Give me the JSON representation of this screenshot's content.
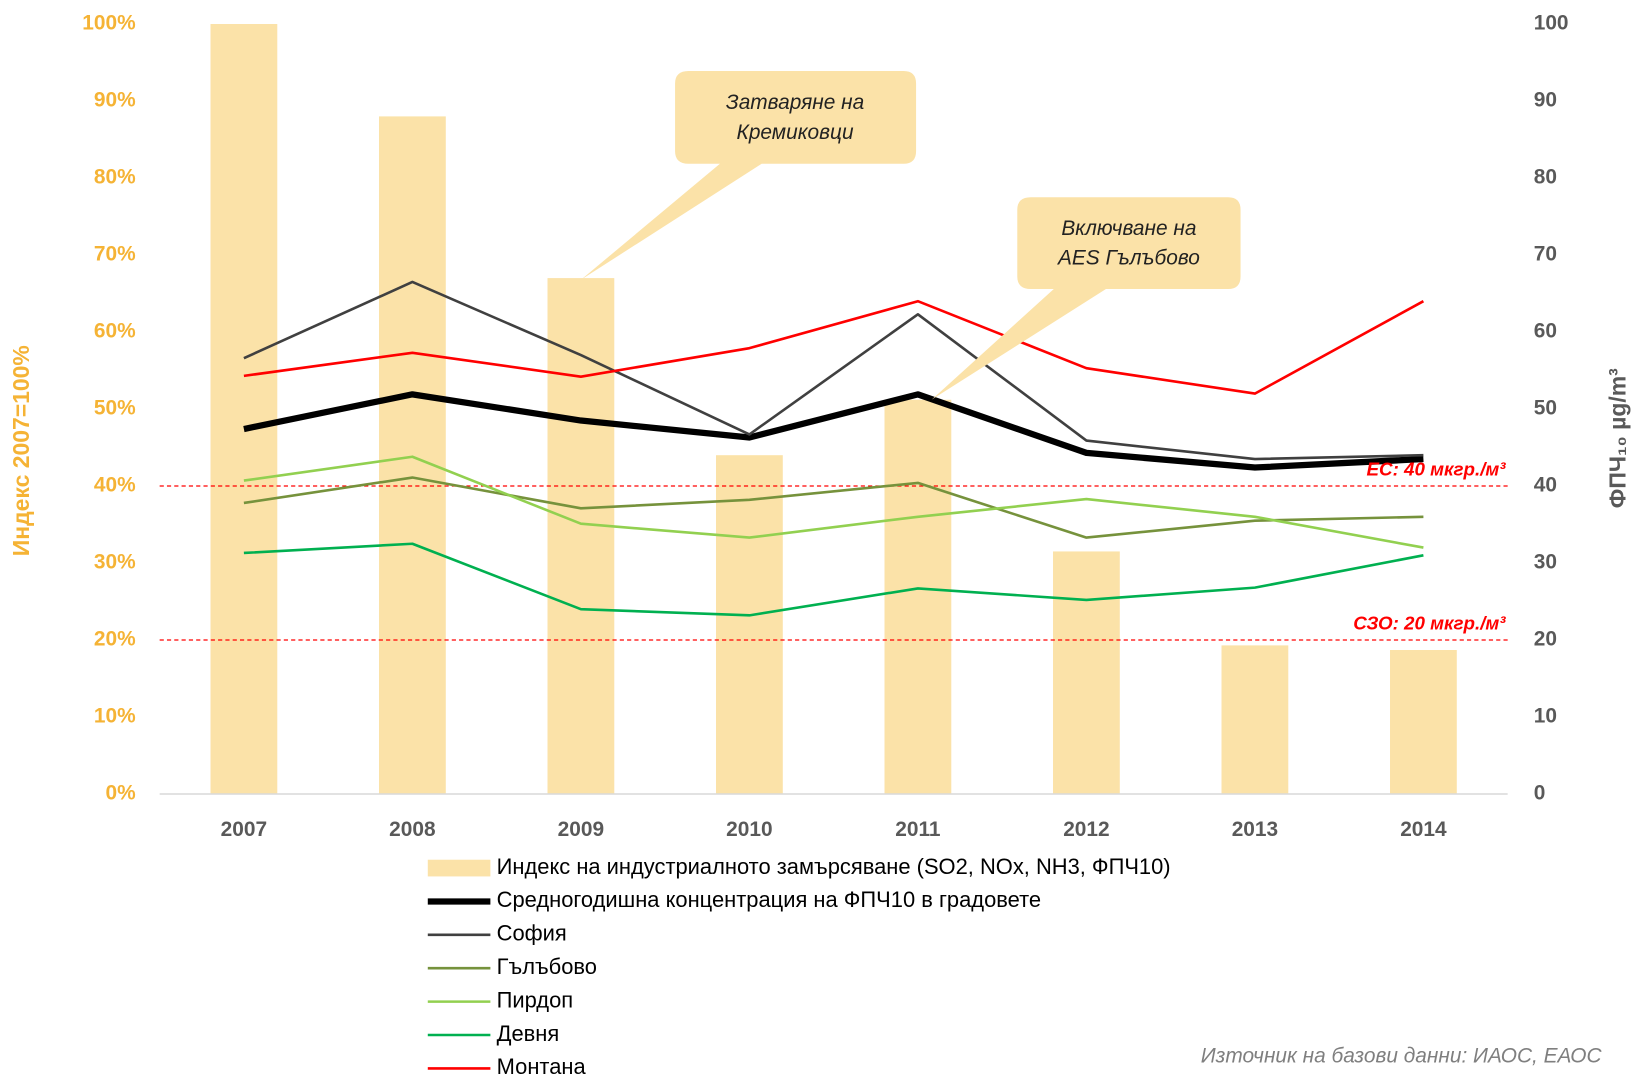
{
  "chart_data": {
    "type": "combo",
    "categories": [
      "2007",
      "2008",
      "2009",
      "2010",
      "2011",
      "2012",
      "2013",
      "2014"
    ],
    "ylabel": "Индекс 2007=100%",
    "y2label": "ФПЧ₁₀  µg/m³",
    "ylim": [
      0,
      100
    ],
    "yticks": [
      {
        "value": 0,
        "label": "0%"
      },
      {
        "value": 10,
        "label": "10%"
      },
      {
        "value": 20,
        "label": "20%"
      },
      {
        "value": 30,
        "label": "30%"
      },
      {
        "value": 40,
        "label": "40%"
      },
      {
        "value": 50,
        "label": "50%"
      },
      {
        "value": 60,
        "label": "60%"
      },
      {
        "value": 70,
        "label": "70%"
      },
      {
        "value": 80,
        "label": "80%"
      },
      {
        "value": 90,
        "label": "90%"
      },
      {
        "value": 100,
        "label": "100%"
      }
    ],
    "y2lim": [
      0,
      100
    ],
    "y2ticks": [
      0,
      10,
      20,
      30,
      40,
      50,
      60,
      70,
      80,
      90,
      100
    ],
    "series": [
      {
        "name": "Индекс на индустриалното замърсяване (SO2, NOx, NH3, ФПЧ10)",
        "type": "bar",
        "color": "#fbe2a8",
        "values": [
          100,
          88,
          67,
          44,
          51.2,
          31.5,
          19.3,
          18.7
        ]
      },
      {
        "name": "Средногодишна концентрация на ФПЧ10 в градовете",
        "type": "line",
        "axis": "y2",
        "color": "#000000",
        "width": 6,
        "values": [
          47.4,
          51.9,
          48.5,
          46.3,
          51.9,
          44.3,
          42.4,
          43.5
        ]
      },
      {
        "name": "София",
        "type": "line",
        "axis": "y2",
        "color": "#404040",
        "width": 2.5,
        "values": [
          56.6,
          66.5,
          57.0,
          46.7,
          62.3,
          45.9,
          43.5,
          44.0
        ]
      },
      {
        "name": "Гълъбово",
        "type": "line",
        "axis": "y2",
        "color": "#76923c",
        "width": 2.5,
        "values": [
          37.8,
          41.1,
          37.1,
          38.2,
          40.4,
          33.3,
          35.5,
          36.0
        ]
      },
      {
        "name": "Пирдоп",
        "type": "line",
        "axis": "y2",
        "color": "#92d050",
        "width": 2.5,
        "values": [
          40.7,
          43.8,
          35.1,
          33.3,
          36.0,
          38.3,
          36.0,
          32.0
        ]
      },
      {
        "name": "Девня",
        "type": "line",
        "axis": "y2",
        "color": "#00b050",
        "width": 2.5,
        "values": [
          31.3,
          32.5,
          24.0,
          23.2,
          26.7,
          25.2,
          26.8,
          31.0
        ]
      },
      {
        "name": "Монтана",
        "type": "line",
        "axis": "y2",
        "color": "#ff0000",
        "width": 2.5,
        "values": [
          54.3,
          57.3,
          54.2,
          57.9,
          64.0,
          55.3,
          52.0,
          64.0
        ]
      }
    ],
    "reference_lines": [
      {
        "value": 40,
        "axis": "y2",
        "label": "ЕС: 40 мкгр./м³",
        "color": "#ff0000"
      },
      {
        "value": 20,
        "axis": "y2",
        "label": "СЗО: 20 мкгр./м³",
        "color": "#ff0000"
      }
    ],
    "annotations": [
      {
        "lines": [
          "Затваряне на",
          "Кремиковци"
        ]
      },
      {
        "lines": [
          "Включване на",
          "AES Гълъбово"
        ]
      }
    ],
    "source": "Източник на базови данни: ИАОС, ЕАОС"
  }
}
